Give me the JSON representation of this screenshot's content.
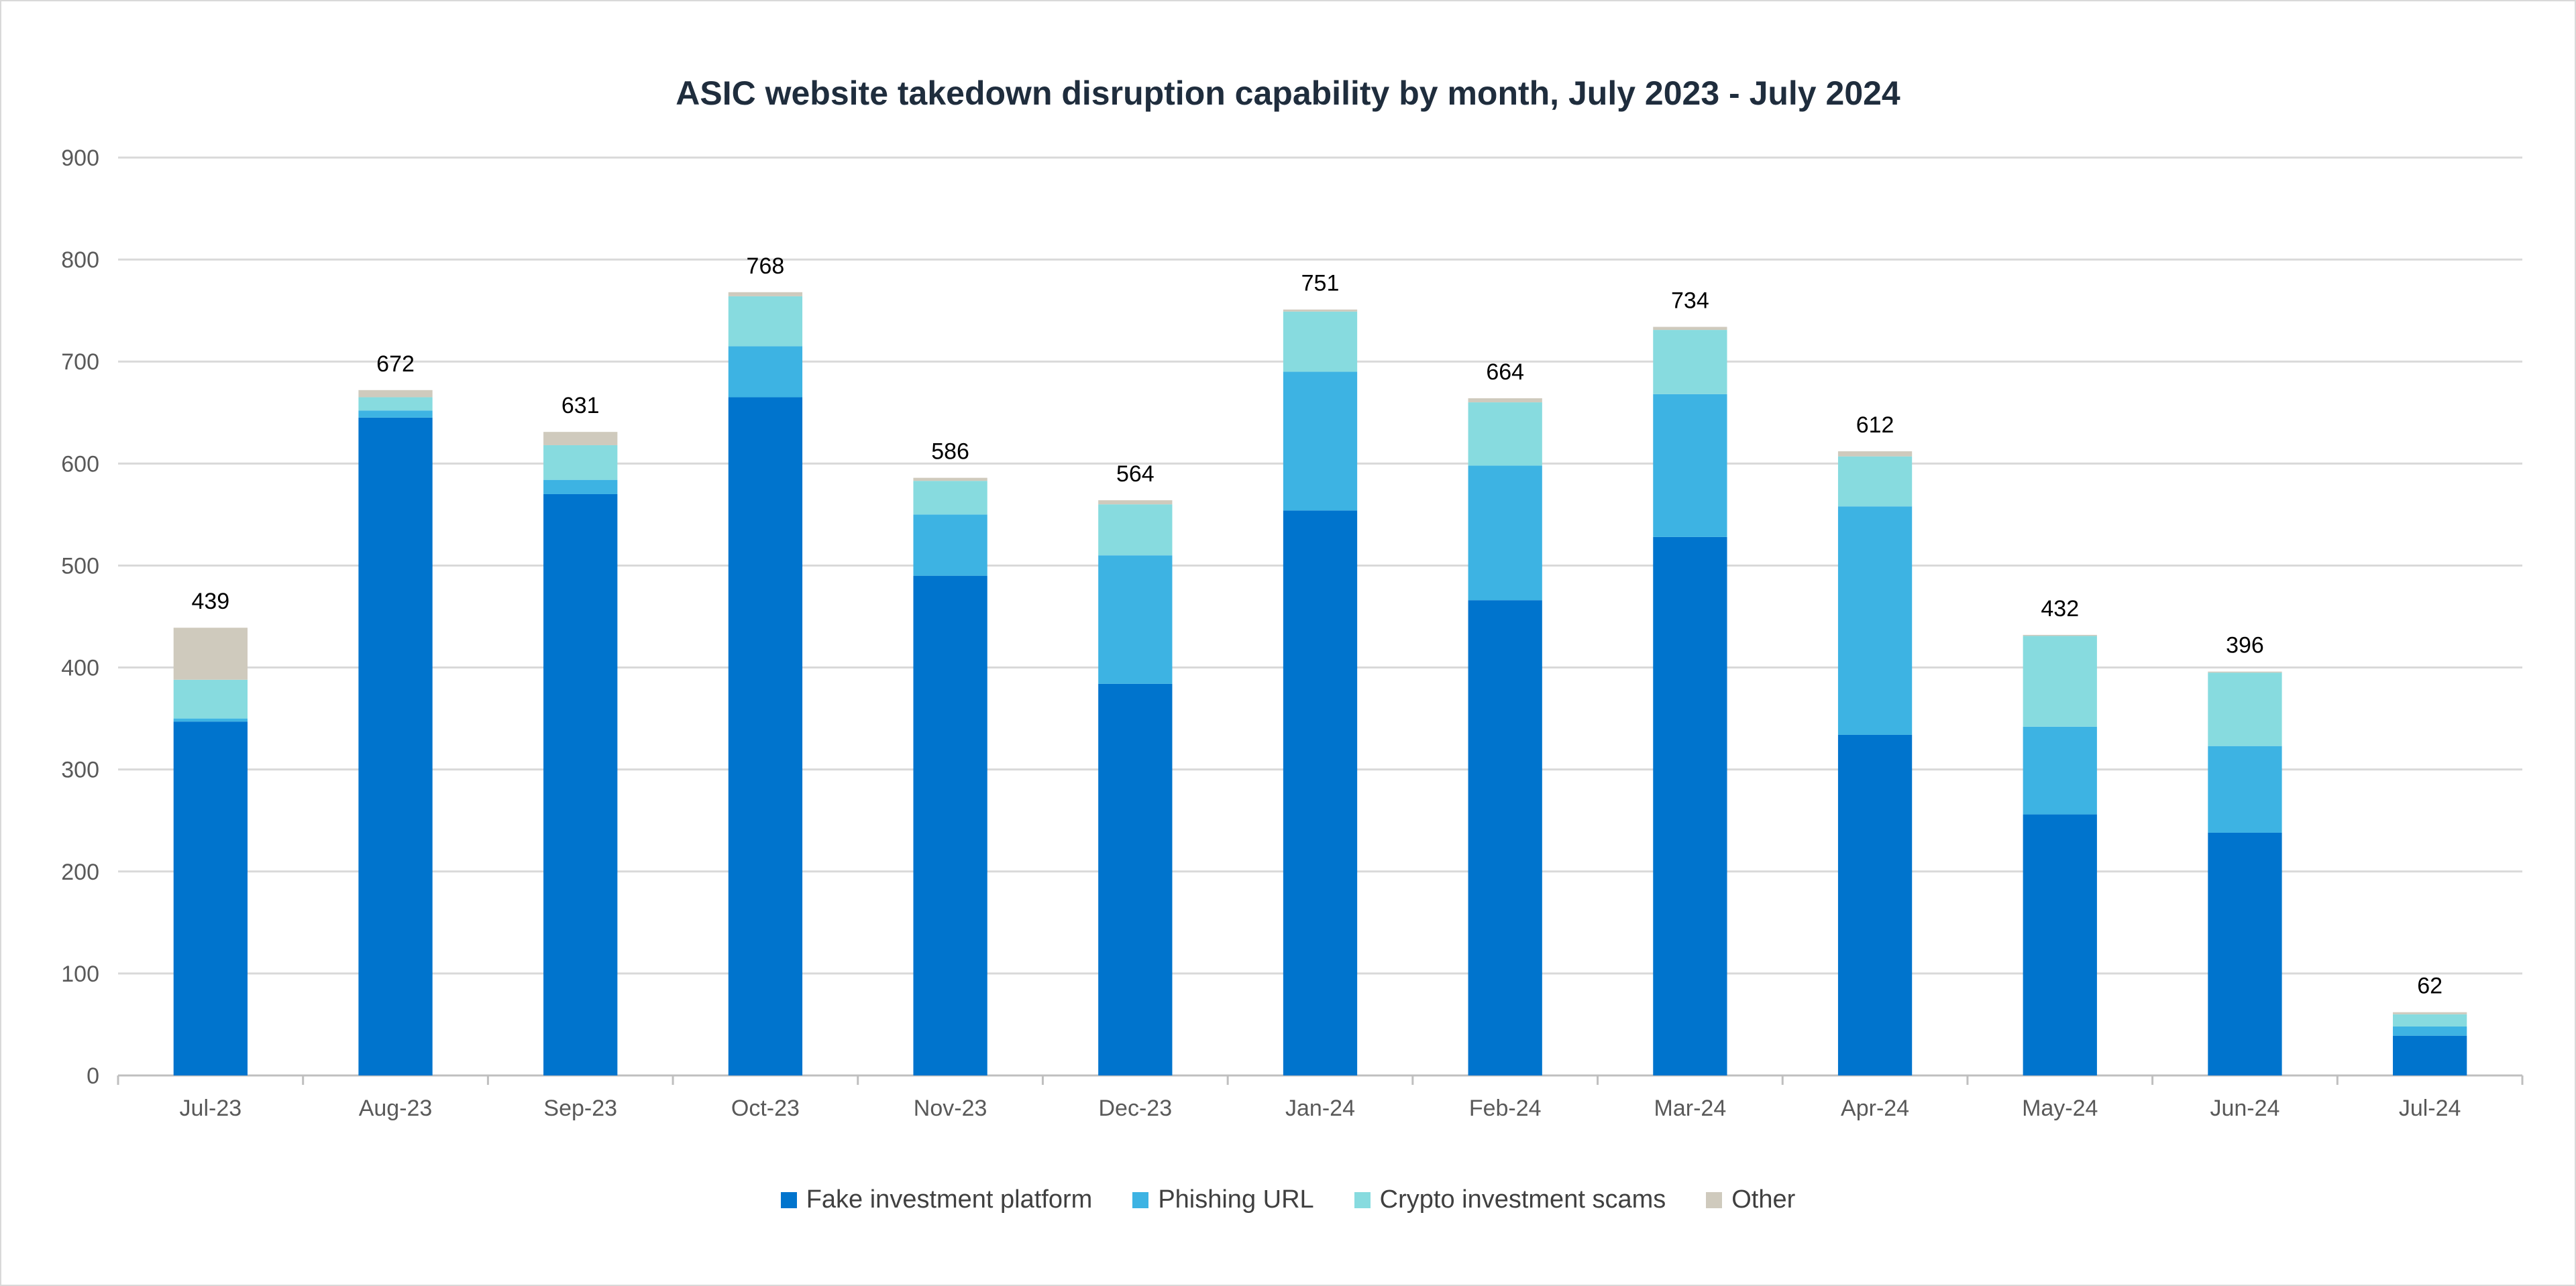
{
  "chart_data": {
    "type": "bar",
    "stacked": true,
    "title": "ASIC website takedown disruption capability by month, July 2023 - July 2024",
    "xlabel": "",
    "ylabel": "",
    "ylim": [
      0,
      900
    ],
    "yticks": [
      0,
      100,
      200,
      300,
      400,
      500,
      600,
      700,
      800,
      900
    ],
    "grid": true,
    "legend_position": "bottom",
    "categories": [
      "Jul-23",
      "Aug-23",
      "Sep-23",
      "Oct-23",
      "Nov-23",
      "Dec-23",
      "Jan-24",
      "Feb-24",
      "Mar-24",
      "Apr-24",
      "May-24",
      "Jun-24",
      "Jul-24"
    ],
    "series": [
      {
        "name": "Fake investment platform",
        "color": "#0074CD",
        "values": [
          347,
          645,
          570,
          665,
          490,
          384,
          554,
          466,
          528,
          334,
          256,
          238,
          39
        ]
      },
      {
        "name": "Phishing URL",
        "color": "#3DB3E3",
        "values": [
          3,
          7,
          14,
          50,
          60,
          126,
          136,
          132,
          140,
          224,
          86,
          85,
          9
        ]
      },
      {
        "name": "Crypto investment scams",
        "color": "#87DBDF",
        "values": [
          38,
          13,
          34,
          49,
          33,
          50,
          59,
          62,
          63,
          49,
          89,
          72,
          12
        ]
      },
      {
        "name": "Other",
        "color": "#CFCABD",
        "values": [
          51,
          7,
          13,
          4,
          3,
          4,
          2,
          4,
          3,
          5,
          1,
          1,
          2
        ]
      }
    ],
    "totals": [
      439,
      672,
      631,
      768,
      586,
      564,
      751,
      664,
      734,
      612,
      432,
      396,
      62
    ]
  }
}
